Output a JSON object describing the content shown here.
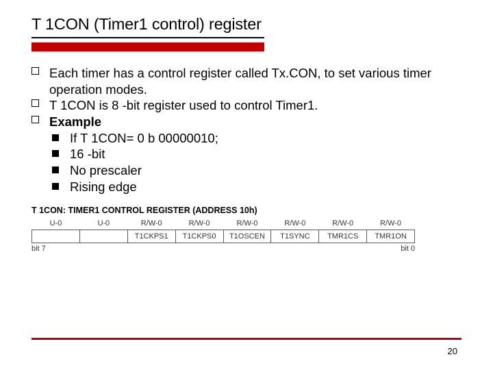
{
  "colors": {
    "red": "#c00000"
  },
  "title": "T 1CON (Timer1 control) register",
  "bullets": [
    {
      "text": "Each timer has a control register called Tx.CON, to set various timer operation modes.",
      "bold": false,
      "children": []
    },
    {
      "text": "T 1CON is 8 -bit register used to control Timer1.",
      "bold": false,
      "children": []
    },
    {
      "text": "Example",
      "bold": true,
      "children": [
        {
          "text": "If T 1CON= 0 b 00000010;"
        },
        {
          "text": "16 -bit"
        },
        {
          "text": "No prescaler"
        },
        {
          "text": "Rising edge"
        }
      ]
    }
  ],
  "register": {
    "title": "T 1CON: TIMER1 CONTROL REGISTER (ADDRESS 10h)",
    "access": [
      "U-0",
      "U-0",
      "R/W-0",
      "R/W-0",
      "R/W-0",
      "R/W-0",
      "R/W-0",
      "R/W-0"
    ],
    "names": [
      "—",
      "—",
      "T1CKPS1",
      "T1CKPS0",
      "T1OSCEN",
      "T1SYNC",
      "TMR1CS",
      "TMR1ON"
    ],
    "bit_left": "bit 7",
    "bit_right": "bit 0"
  },
  "page_number": "20"
}
